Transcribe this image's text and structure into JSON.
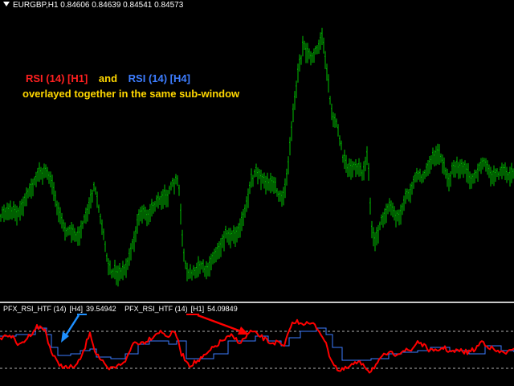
{
  "chart_header": {
    "symbol_timeframe": "EURGBP,H1",
    "open": "0.84606",
    "high": "0.84639",
    "low": "0.84541",
    "close": "0.84573"
  },
  "caption": {
    "rsi_h1": "RSI (14) [H1]",
    "and": "and",
    "rsi_h4": "RSI (14) [H4]",
    "line2": "overlayed together in the same sub-window"
  },
  "indicator": {
    "h4_label": "PFX_RSI_HTF (14)",
    "h4_tag": "[H4]",
    "h4_value": "39.54942",
    "h1_label": "PFX_RSI_HTF (14)",
    "h1_tag": "[H1]",
    "h1_value": "54.09849"
  },
  "colors": {
    "candles": "#00c000",
    "rsi_h1": "#ff0000",
    "rsi_h4": "#3d7dff",
    "caption_red": "#ff2020",
    "caption_yellow": "#ffd700",
    "caption_blue": "#3d7dff",
    "arrow_blue": "#1e90ff",
    "arrow_red": "#ff0000"
  }
}
